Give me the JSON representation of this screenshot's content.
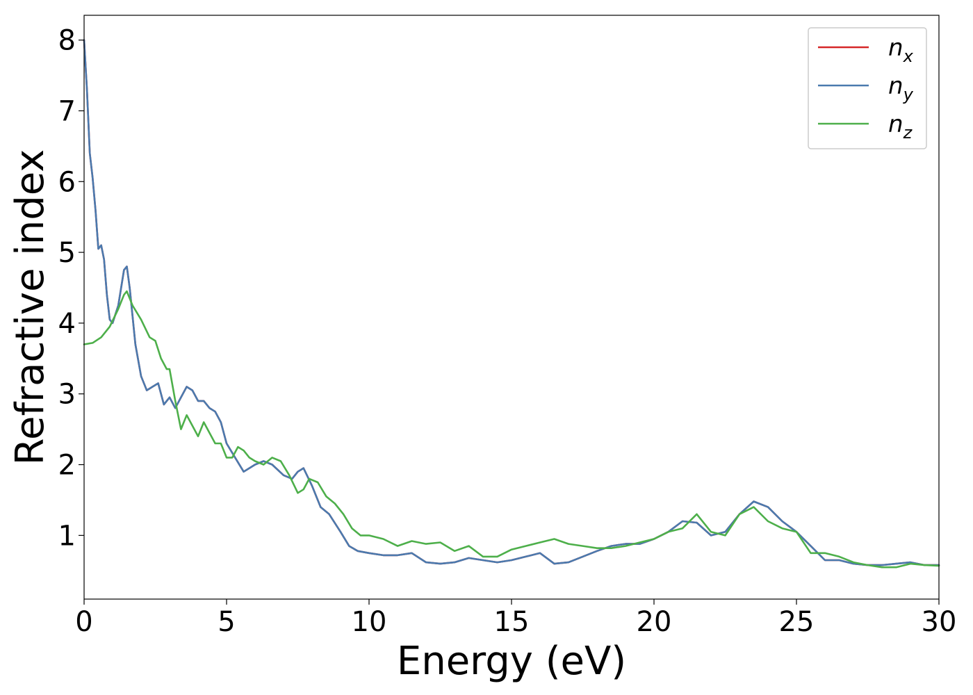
{
  "chart_data": {
    "type": "line",
    "xlabel": "Energy (eV)",
    "ylabel": "Refractive index",
    "xlim": [
      0,
      30
    ],
    "ylim": [
      0.1,
      8.35
    ],
    "xticks": [
      0,
      5,
      10,
      15,
      20,
      25,
      30
    ],
    "yticks": [
      1,
      2,
      3,
      4,
      5,
      6,
      7,
      8
    ],
    "grid": false,
    "legend_position": "top-right",
    "series": [
      {
        "name": "n",
        "subscript": "x",
        "color": "#d62728",
        "x": [
          0,
          0.1,
          0.2,
          0.3,
          0.4,
          0.5,
          0.6,
          0.7,
          0.8,
          0.9,
          1.0,
          1.2,
          1.4,
          1.5,
          1.6,
          1.8,
          2.0,
          2.2,
          2.4,
          2.6,
          2.8,
          3.0,
          3.2,
          3.4,
          3.6,
          3.8,
          4.0,
          4.2,
          4.4,
          4.6,
          4.8,
          5.0,
          5.3,
          5.6,
          5.8,
          6.0,
          6.3,
          6.6,
          7.0,
          7.3,
          7.5,
          7.7,
          8.0,
          8.3,
          8.6,
          9.0,
          9.3,
          9.6,
          10.0,
          10.5,
          11.0,
          11.5,
          12.0,
          12.5,
          13.0,
          13.5,
          14.0,
          14.5,
          15.0,
          15.5,
          16.0,
          16.5,
          17.0,
          17.5,
          18.0,
          18.5,
          19.0,
          19.5,
          20.0,
          20.5,
          21.0,
          21.5,
          22.0,
          22.5,
          23.0,
          23.5,
          24.0,
          24.5,
          25.0,
          25.5,
          26.0,
          26.5,
          27.0,
          27.5,
          28.0,
          28.5,
          29.0,
          29.5,
          30.0
        ],
        "y": [
          8.0,
          7.3,
          6.4,
          6.05,
          5.6,
          5.05,
          5.1,
          4.9,
          4.4,
          4.05,
          4.0,
          4.25,
          4.75,
          4.8,
          4.5,
          3.7,
          3.25,
          3.05,
          3.1,
          3.15,
          2.85,
          2.95,
          2.8,
          2.95,
          3.1,
          3.05,
          2.9,
          2.9,
          2.8,
          2.75,
          2.6,
          2.3,
          2.1,
          1.9,
          1.95,
          2.0,
          2.05,
          2.0,
          1.85,
          1.8,
          1.9,
          1.95,
          1.7,
          1.4,
          1.3,
          1.05,
          0.85,
          0.78,
          0.75,
          0.72,
          0.72,
          0.75,
          0.62,
          0.6,
          0.62,
          0.68,
          0.65,
          0.62,
          0.65,
          0.7,
          0.75,
          0.6,
          0.62,
          0.7,
          0.78,
          0.85,
          0.88,
          0.88,
          0.95,
          1.05,
          1.2,
          1.18,
          1.0,
          1.05,
          1.3,
          1.48,
          1.4,
          1.2,
          1.05,
          0.85,
          0.65,
          0.65,
          0.6,
          0.58,
          0.58,
          0.6,
          0.62,
          0.58,
          0.58
        ]
      },
      {
        "name": "n",
        "subscript": "y",
        "color": "#4a7aae",
        "x": [
          0,
          0.1,
          0.2,
          0.3,
          0.4,
          0.5,
          0.6,
          0.7,
          0.8,
          0.9,
          1.0,
          1.2,
          1.4,
          1.5,
          1.6,
          1.8,
          2.0,
          2.2,
          2.4,
          2.6,
          2.8,
          3.0,
          3.2,
          3.4,
          3.6,
          3.8,
          4.0,
          4.2,
          4.4,
          4.6,
          4.8,
          5.0,
          5.3,
          5.6,
          5.8,
          6.0,
          6.3,
          6.6,
          7.0,
          7.3,
          7.5,
          7.7,
          8.0,
          8.3,
          8.6,
          9.0,
          9.3,
          9.6,
          10.0,
          10.5,
          11.0,
          11.5,
          12.0,
          12.5,
          13.0,
          13.5,
          14.0,
          14.5,
          15.0,
          15.5,
          16.0,
          16.5,
          17.0,
          17.5,
          18.0,
          18.5,
          19.0,
          19.5,
          20.0,
          20.5,
          21.0,
          21.5,
          22.0,
          22.5,
          23.0,
          23.5,
          24.0,
          24.5,
          25.0,
          25.5,
          26.0,
          26.5,
          27.0,
          27.5,
          28.0,
          28.5,
          29.0,
          29.5,
          30.0
        ],
        "y": [
          8.0,
          7.3,
          6.4,
          6.05,
          5.6,
          5.05,
          5.1,
          4.9,
          4.4,
          4.05,
          4.0,
          4.25,
          4.75,
          4.8,
          4.5,
          3.7,
          3.25,
          3.05,
          3.1,
          3.15,
          2.85,
          2.95,
          2.8,
          2.95,
          3.1,
          3.05,
          2.9,
          2.9,
          2.8,
          2.75,
          2.6,
          2.3,
          2.1,
          1.9,
          1.95,
          2.0,
          2.05,
          2.0,
          1.85,
          1.8,
          1.9,
          1.95,
          1.7,
          1.4,
          1.3,
          1.05,
          0.85,
          0.78,
          0.75,
          0.72,
          0.72,
          0.75,
          0.62,
          0.6,
          0.62,
          0.68,
          0.65,
          0.62,
          0.65,
          0.7,
          0.75,
          0.6,
          0.62,
          0.7,
          0.78,
          0.85,
          0.88,
          0.88,
          0.95,
          1.05,
          1.2,
          1.18,
          1.0,
          1.05,
          1.3,
          1.48,
          1.4,
          1.2,
          1.05,
          0.85,
          0.65,
          0.65,
          0.6,
          0.58,
          0.58,
          0.6,
          0.62,
          0.58,
          0.58
        ]
      },
      {
        "name": "n",
        "subscript": "z",
        "color": "#4daf4a",
        "x": [
          0,
          0.3,
          0.6,
          0.9,
          1.2,
          1.4,
          1.5,
          1.7,
          2.0,
          2.3,
          2.5,
          2.7,
          2.9,
          3.0,
          3.2,
          3.4,
          3.6,
          3.8,
          4.0,
          4.2,
          4.4,
          4.6,
          4.8,
          5.0,
          5.2,
          5.4,
          5.6,
          5.8,
          6.0,
          6.3,
          6.6,
          6.9,
          7.2,
          7.5,
          7.7,
          7.9,
          8.2,
          8.5,
          8.8,
          9.1,
          9.4,
          9.7,
          10.0,
          10.5,
          11.0,
          11.5,
          12.0,
          12.5,
          13.0,
          13.5,
          14.0,
          14.5,
          15.0,
          15.5,
          16.0,
          16.5,
          17.0,
          17.5,
          18.0,
          18.5,
          19.0,
          19.5,
          20.0,
          20.5,
          21.0,
          21.5,
          22.0,
          22.5,
          23.0,
          23.5,
          24.0,
          24.5,
          25.0,
          25.5,
          26.0,
          26.5,
          27.0,
          27.5,
          28.0,
          28.5,
          29.0,
          29.5,
          30.0
        ],
        "y": [
          3.7,
          3.72,
          3.8,
          3.95,
          4.2,
          4.4,
          4.45,
          4.25,
          4.05,
          3.8,
          3.75,
          3.5,
          3.35,
          3.35,
          2.9,
          2.5,
          2.7,
          2.55,
          2.4,
          2.6,
          2.45,
          2.3,
          2.3,
          2.1,
          2.1,
          2.25,
          2.2,
          2.1,
          2.05,
          2.0,
          2.1,
          2.05,
          1.85,
          1.6,
          1.65,
          1.8,
          1.75,
          1.55,
          1.45,
          1.3,
          1.1,
          1.0,
          1.0,
          0.95,
          0.85,
          0.92,
          0.88,
          0.9,
          0.78,
          0.85,
          0.7,
          0.7,
          0.8,
          0.85,
          0.9,
          0.95,
          0.88,
          0.85,
          0.82,
          0.82,
          0.85,
          0.9,
          0.95,
          1.05,
          1.1,
          1.3,
          1.05,
          1.0,
          1.3,
          1.4,
          1.2,
          1.1,
          1.05,
          0.75,
          0.75,
          0.7,
          0.62,
          0.58,
          0.55,
          0.55,
          0.6,
          0.58,
          0.57
        ]
      }
    ]
  }
}
